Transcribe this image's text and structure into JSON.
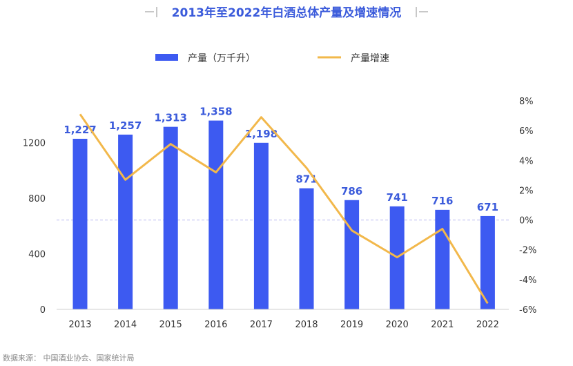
{
  "chart_data": {
    "type": "bar",
    "title": "2013年至2022年白酒总体产量及增速情况",
    "source": "数据来源：  中国酒业协会、国家统计局",
    "categories": [
      "2013",
      "2014",
      "2015",
      "2016",
      "2017",
      "2018",
      "2019",
      "2020",
      "2021",
      "2022"
    ],
    "series": [
      {
        "name": "产量（万千升）",
        "type": "bar",
        "axis": "left",
        "values": [
          1227,
          1257,
          1313,
          1358,
          1198,
          871,
          786,
          741,
          716,
          671
        ],
        "labels": [
          "1,227",
          "1,257",
          "1,313",
          "1,358",
          "1,198",
          "871",
          "786",
          "741",
          "716",
          "671"
        ],
        "color": "#3d5af1"
      },
      {
        "name": "产量增速",
        "type": "line",
        "axis": "right",
        "values": [
          7.1,
          2.7,
          5.1,
          3.2,
          6.9,
          3.5,
          -0.7,
          -2.5,
          -0.6,
          -5.6
        ],
        "color": "#f2b84b"
      }
    ],
    "y_left": {
      "min": 0,
      "max": 1500,
      "ticks": [
        0,
        400,
        800,
        1200
      ],
      "tick_labels": [
        "0",
        "400",
        "800",
        "1200"
      ]
    },
    "y_right": {
      "min": -6,
      "max": 8,
      "ticks": [
        -6,
        -4,
        -2,
        0,
        2,
        4,
        6,
        8
      ],
      "tick_labels": [
        "-6%",
        "-4%",
        "-2%",
        "0%",
        "2%",
        "4%",
        "6%",
        "8%"
      ]
    },
    "zero_line_color": "#b8b8f0",
    "legend_position": "top-center",
    "grid": false
  }
}
